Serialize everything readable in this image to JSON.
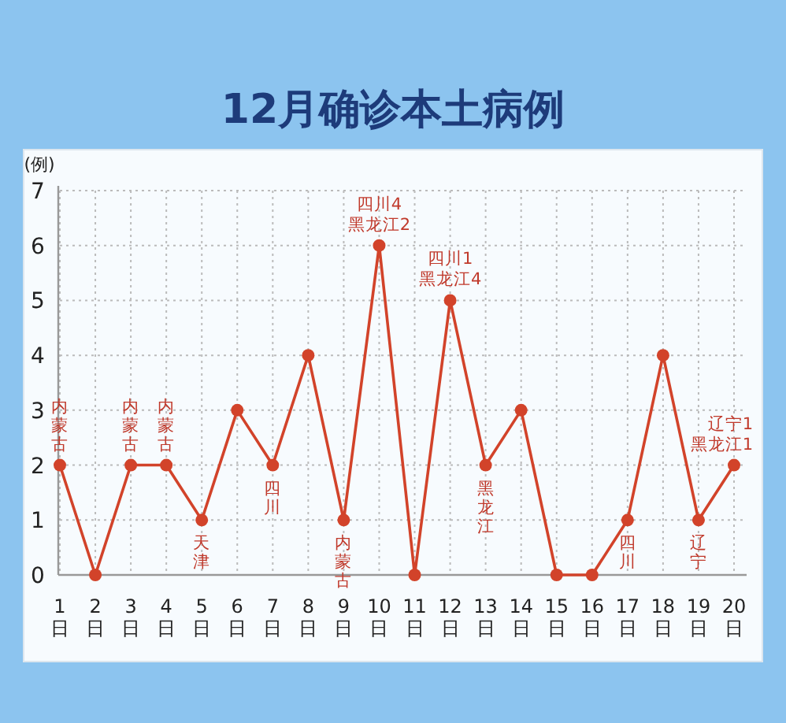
{
  "chart_data": {
    "type": "line",
    "title": "12月确诊本土病例",
    "ylabel": "(例)",
    "categories": [
      "1日",
      "2日",
      "3日",
      "4日",
      "5日",
      "6日",
      "7日",
      "8日",
      "9日",
      "10日",
      "11日",
      "12日",
      "13日",
      "14日",
      "15日",
      "16日",
      "17日",
      "18日",
      "19日",
      "20日"
    ],
    "values": [
      2,
      0,
      2,
      2,
      1,
      3,
      2,
      4,
      1,
      6,
      0,
      5,
      2,
      3,
      0,
      0,
      1,
      4,
      1,
      2
    ],
    "color": "#d2432a",
    "ylim": [
      0,
      7
    ],
    "yticks": [
      0,
      1,
      2,
      3,
      4,
      5,
      6,
      7
    ],
    "grid": true,
    "marker": "circle",
    "annotations": [
      {
        "text": "内蒙古",
        "x": "1日",
        "y": 2
      },
      {
        "text": "内蒙古",
        "x": "3日",
        "y": 2
      },
      {
        "text": "内蒙古",
        "x": "4日",
        "y": 2
      },
      {
        "text": "天津",
        "x": "5日",
        "y": 1
      },
      {
        "text": "四川",
        "x": "7日",
        "y": 2
      },
      {
        "text": "内蒙古",
        "x": "9日",
        "y": 1
      },
      {
        "text": "四川4 黑龙江2",
        "x": "10日",
        "y": 6
      },
      {
        "text": "四川1 黑龙江4",
        "x": "12日",
        "y": 5
      },
      {
        "text": "黑龙江",
        "x": "13日",
        "y": 2
      },
      {
        "text": "四川",
        "x": "17日",
        "y": 1
      },
      {
        "text": "辽宁",
        "x": "19日",
        "y": 1
      },
      {
        "text": "辽宁1 黑龙江1",
        "x": "20日",
        "y": 2
      }
    ]
  }
}
